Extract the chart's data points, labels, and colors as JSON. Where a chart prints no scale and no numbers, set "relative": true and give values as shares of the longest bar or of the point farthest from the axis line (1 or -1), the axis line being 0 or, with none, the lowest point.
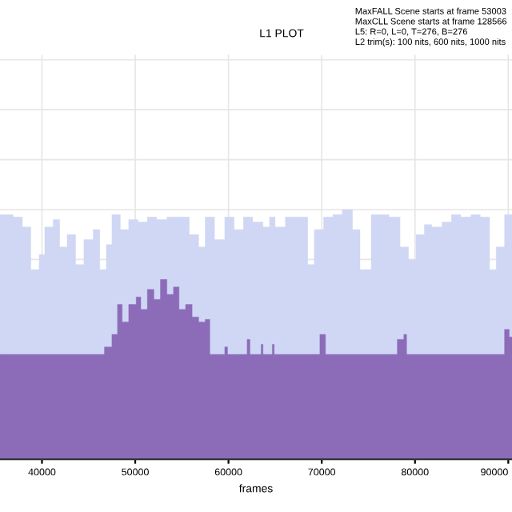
{
  "chart_data": {
    "type": "area",
    "title": "L1 PLOT",
    "xlabel": "frames",
    "relative": true,
    "grid": true,
    "legend": false,
    "annotations": [
      "MaxFALL Scene starts at frame 53003",
      "MaxCLL Scene starts at frame 128566",
      "L5: R=0, L=0, T=276, B=276",
      "L2 trim(s): 100 nits, 600 nits, 1000 nits"
    ],
    "xlim": [
      35500,
      90400
    ],
    "xticks": [
      40000,
      50000,
      60000,
      70000,
      80000,
      90000
    ],
    "series": [
      {
        "color": "#cfd7f4",
        "x": [
          35500,
          36900,
          37900,
          38800,
          39700,
          40300,
          41200,
          41900,
          42700,
          43600,
          44500,
          45500,
          46200,
          46900,
          47500,
          48400,
          49300,
          50300,
          51300,
          52300,
          53400,
          54700,
          55800,
          56800,
          57500,
          58500,
          59600,
          60600,
          61600,
          62600,
          63700,
          64400,
          65000,
          66100,
          67400,
          68500,
          69200,
          70200,
          71200,
          72200,
          73300,
          74100,
          75300,
          76400,
          77200,
          78400,
          79300,
          80100,
          81000,
          81800,
          82900,
          83900,
          84900,
          86000,
          87000,
          88000,
          88700,
          89600,
          90400
        ],
        "values": [
          0.98,
          0.97,
          0.93,
          0.76,
          0.82,
          0.93,
          0.96,
          0.85,
          0.9,
          0.78,
          0.88,
          0.92,
          0.76,
          0.86,
          0.98,
          0.92,
          0.96,
          0.95,
          0.97,
          0.96,
          0.97,
          0.97,
          0.9,
          0.85,
          0.97,
          0.88,
          0.97,
          0.92,
          0.97,
          0.95,
          0.93,
          0.97,
          0.93,
          0.97,
          0.97,
          0.78,
          0.92,
          0.97,
          0.98,
          1.0,
          0.92,
          0.76,
          0.98,
          0.98,
          0.97,
          0.85,
          0.8,
          0.9,
          0.94,
          0.93,
          0.95,
          0.98,
          0.97,
          0.98,
          0.97,
          0.76,
          0.85,
          0.98,
          0.98
        ]
      },
      {
        "color": "#8c6cb9",
        "x": [
          35500,
          46700,
          47500,
          48100,
          48600,
          49300,
          50100,
          50600,
          51300,
          52000,
          52700,
          53400,
          54100,
          54700,
          55400,
          56100,
          56800,
          57500,
          58000,
          59600,
          59900,
          62000,
          62300,
          63500,
          63700,
          64700,
          64900,
          69800,
          70400,
          78100,
          78800,
          79100,
          89600,
          90100,
          90400
        ],
        "values": [
          0.42,
          0.45,
          0.5,
          0.62,
          0.55,
          0.62,
          0.65,
          0.6,
          0.68,
          0.64,
          0.72,
          0.66,
          0.69,
          0.6,
          0.62,
          0.57,
          0.55,
          0.56,
          0.42,
          0.45,
          0.42,
          0.48,
          0.42,
          0.46,
          0.42,
          0.46,
          0.42,
          0.5,
          0.42,
          0.48,
          0.5,
          0.42,
          0.52,
          0.49,
          0.49
        ]
      }
    ]
  }
}
